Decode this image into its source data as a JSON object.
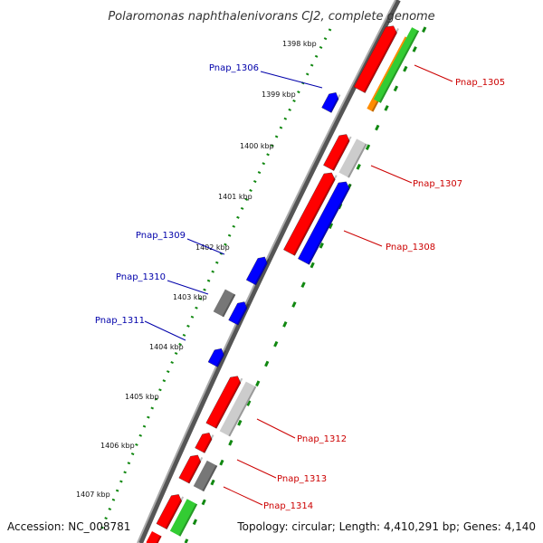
{
  "title": "Polaromonas naphthalenivorans CJ2, complete genome",
  "footer": {
    "accession": "Accession: NC_008781",
    "summary": "Topology: circular; Length: 4,410,291 bp; Genes: 4,140"
  },
  "ruler_labels": [
    "1398 kbp",
    "1399 kbp",
    "1400 kbp",
    "1401 kbp",
    "1402 kbp",
    "1403 kbp",
    "1404 kbp",
    "1405 kbp",
    "1406 kbp",
    "1407 kbp"
  ],
  "gene_labels": {
    "forward": [
      "Pnap_1305",
      "Pnap_1307",
      "Pnap_1308",
      "Pnap_1312",
      "Pnap_1313",
      "Pnap_1314"
    ],
    "reverse": [
      "Pnap_1306",
      "Pnap_1309",
      "Pnap_1310",
      "Pnap_1311"
    ]
  },
  "colors": {
    "forward_label": "#cc0000",
    "reverse_label": "#0000aa",
    "forward_cds": "#ff0000",
    "reverse_cds": "#0000ff",
    "orange_feature": "#ff8c00",
    "green_feature": "#33cc33",
    "gray_feature": "#777777",
    "light_gray_feature": "#cccccc",
    "backbone": "#888888",
    "ruler_dots": "#118811"
  }
}
